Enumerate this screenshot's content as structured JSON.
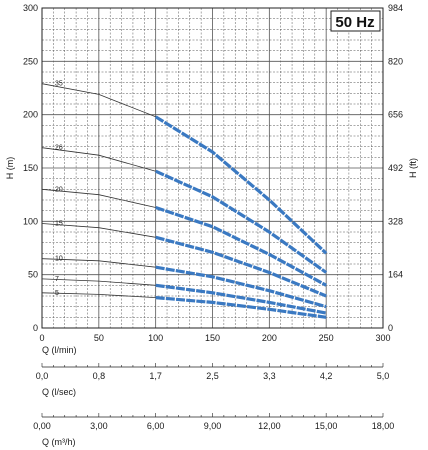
{
  "chart_data": {
    "type": "line",
    "badge": "50 Hz",
    "xlabel": "Q (l/min)",
    "ylabel_left": "H (m)",
    "ylabel_right": "H (ft)",
    "xlim": [
      0,
      300
    ],
    "ylim": [
      0,
      300
    ],
    "x_ticks": [
      "0",
      "50",
      "100",
      "150",
      "200",
      "250",
      "300"
    ],
    "y_ticks": [
      "0",
      "50",
      "100",
      "150",
      "200",
      "250",
      "300"
    ],
    "y_ticks_right": [
      "0",
      "164",
      "328",
      "492",
      "656",
      "820",
      "984"
    ],
    "grid": true,
    "series": [
      {
        "name": "35",
        "x": [
          0,
          50,
          100,
          150,
          200,
          250
        ],
        "y": [
          229,
          219,
          198,
          165,
          120,
          70
        ]
      },
      {
        "name": "26",
        "x": [
          0,
          50,
          100,
          150,
          200,
          250
        ],
        "y": [
          169,
          162,
          147,
          123,
          90,
          52
        ]
      },
      {
        "name": "20",
        "x": [
          0,
          50,
          100,
          150,
          200,
          250
        ],
        "y": [
          130,
          125,
          113,
          95,
          69,
          40
        ]
      },
      {
        "name": "15",
        "x": [
          0,
          50,
          100,
          150,
          200,
          250
        ],
        "y": [
          98,
          94,
          85,
          71,
          52,
          30
        ]
      },
      {
        "name": "10",
        "x": [
          0,
          50,
          100,
          150,
          200,
          250
        ],
        "y": [
          65,
          63,
          57,
          48,
          35,
          20
        ]
      },
      {
        "name": "7",
        "x": [
          0,
          50,
          100,
          150,
          200,
          250
        ],
        "y": [
          46,
          44,
          40,
          33,
          24,
          14
        ]
      },
      {
        "name": "5",
        "x": [
          0,
          50,
          100,
          150,
          200,
          250
        ],
        "y": [
          33,
          31.5,
          28.5,
          24,
          17.5,
          10
        ]
      }
    ],
    "secondary_axes": [
      {
        "label": "Q (l/sec)",
        "ticks": [
          "0,0",
          "0,8",
          "1,7",
          "2,5",
          "3,3",
          "4,2",
          "5,0"
        ]
      },
      {
        "label": "Q (m³/h)",
        "ticks": [
          "0,00",
          "3,00",
          "6,00",
          "9,00",
          "12,00",
          "15,00",
          "18,00"
        ]
      }
    ],
    "colors": {
      "curve": "#3a79c2",
      "curve_dashed": "#333333",
      "grid": "#555555"
    }
  }
}
